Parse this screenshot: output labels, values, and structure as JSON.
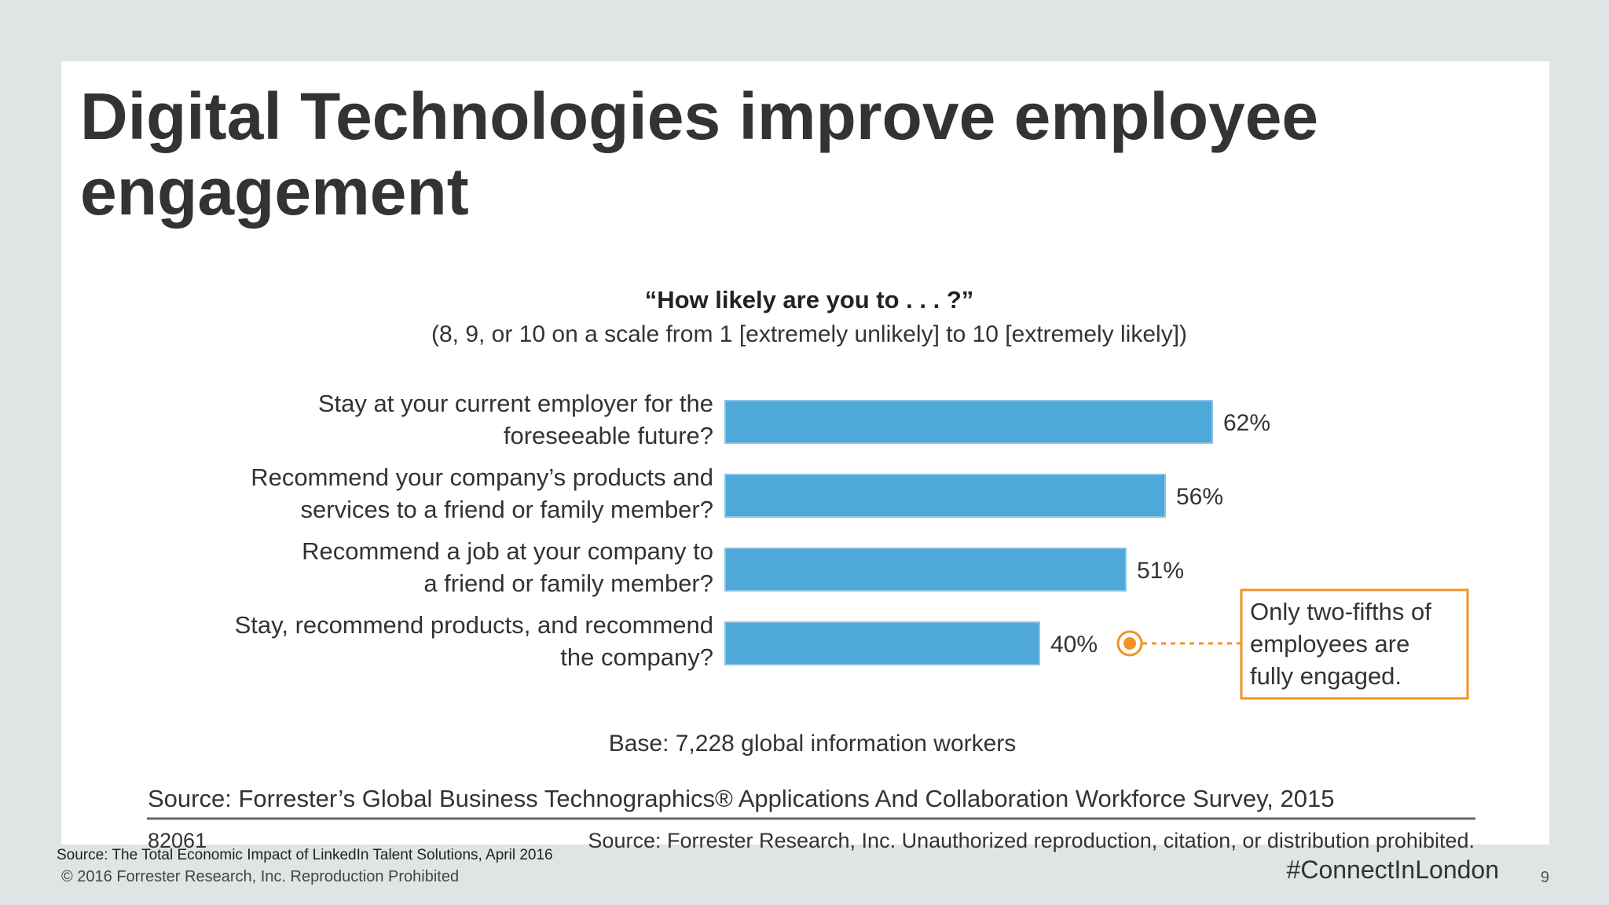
{
  "slide": {
    "title": "Digital Technologies improve employee engagement",
    "footer_source": "Source: The Total Economic Impact of LinkedIn Talent Solutions, April 2016",
    "footer_copyright": "© 2016 Forrester Research, Inc. Reproduction Prohibited",
    "hashtag": "#ConnectInLondon",
    "page_number": "9"
  },
  "chart_data": {
    "type": "bar",
    "orientation": "horizontal",
    "title": "“How likely are you to . . . ?”",
    "subtitle": "(8, 9, or 10 on a scale from 1 [extremely unlikely] to 10 [extremely likely])",
    "categories": [
      [
        "Stay at your current employer for the",
        "foreseeable future?"
      ],
      [
        "Recommend your company’s products and",
        "services to a friend or family member?"
      ],
      [
        "Recommend a job at your company to",
        "a friend or family member?"
      ],
      [
        "Stay, recommend products, and recommend",
        "the company?"
      ]
    ],
    "values": [
      62,
      56,
      51,
      40
    ],
    "value_labels": [
      "62%",
      "56%",
      "51%",
      "40%"
    ],
    "bar_color": "#4ea8d8",
    "callout": {
      "target_index": 3,
      "lines": [
        "Only two-fifths of",
        "employees are",
        "fully engaged."
      ],
      "color": "#f39323"
    },
    "base_note": "Base: 7,228 global information workers",
    "source": "Source: Forrester’s Global Business Technographics® Applications And Collaboration Workforce Survey, 2015",
    "id": "82061",
    "rights": "Source: Forrester Research, Inc. Unauthorized reproduction, citation, or distribution prohibited."
  }
}
